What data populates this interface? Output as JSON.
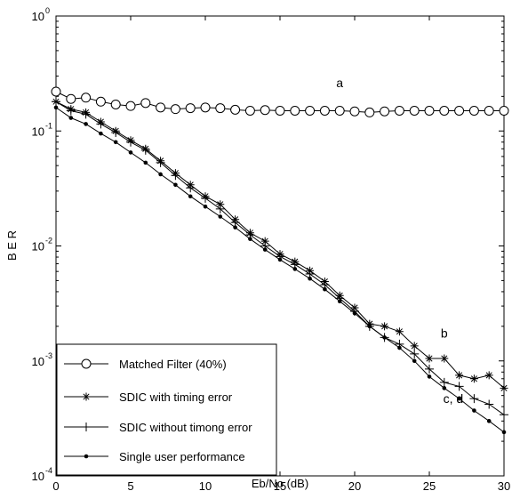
{
  "chart_data": {
    "type": "line",
    "title": "",
    "xlabel": "Eb/No (dB)",
    "ylabel": "B E R",
    "xlim": [
      0,
      30
    ],
    "ylim": [
      0.0001,
      1
    ],
    "yscale": "log",
    "grid": false,
    "legend_position": "bottom-left",
    "x_ticks": [
      "0",
      "5",
      "10",
      "15",
      "20",
      "25",
      "30"
    ],
    "y_ticks": [
      {
        "value": 1,
        "base": "10",
        "exp": "0"
      },
      {
        "value": 0.1,
        "base": "10",
        "exp": "-1"
      },
      {
        "value": 0.01,
        "base": "10",
        "exp": "-2"
      },
      {
        "value": 0.001,
        "base": "10",
        "exp": "-3"
      },
      {
        "value": 0.0001,
        "base": "10",
        "exp": "-4"
      }
    ],
    "x": [
      0,
      1,
      2,
      3,
      4,
      5,
      6,
      7,
      8,
      9,
      10,
      11,
      12,
      13,
      14,
      15,
      16,
      17,
      18,
      19,
      20,
      21,
      22,
      23,
      24,
      25,
      26,
      27,
      28,
      29,
      30
    ],
    "series": [
      {
        "name": "Matched Filter (40%)",
        "marker": "circle",
        "values": [
          0.22,
          0.19,
          0.195,
          0.18,
          0.17,
          0.165,
          0.175,
          0.16,
          0.155,
          0.158,
          0.16,
          0.158,
          0.153,
          0.15,
          0.152,
          0.15,
          0.15,
          0.15,
          0.15,
          0.15,
          0.148,
          0.145,
          0.148,
          0.15,
          0.15,
          0.15,
          0.15,
          0.15,
          0.15,
          0.15,
          0.15
        ]
      },
      {
        "name": "SDIC with timing error",
        "marker": "star",
        "values": [
          0.18,
          0.155,
          0.145,
          0.12,
          0.1,
          0.083,
          0.07,
          0.055,
          0.043,
          0.034,
          0.027,
          0.023,
          0.017,
          0.013,
          0.011,
          0.0085,
          0.0073,
          0.0061,
          0.0049,
          0.0037,
          0.0029,
          0.0021,
          0.002,
          0.0018,
          0.00135,
          0.00105,
          0.00105,
          0.00075,
          0.0007,
          0.00075,
          0.00058
        ]
      },
      {
        "name": "SDIC without timong error",
        "marker": "plus",
        "values": [
          0.18,
          0.15,
          0.14,
          0.115,
          0.097,
          0.08,
          0.068,
          0.053,
          0.041,
          0.032,
          0.026,
          0.021,
          0.016,
          0.0125,
          0.01,
          0.0081,
          0.0069,
          0.0057,
          0.0046,
          0.0035,
          0.0027,
          0.002,
          0.0016,
          0.0014,
          0.00115,
          0.00085,
          0.00065,
          0.0006,
          0.00047,
          0.00042,
          0.00034
        ]
      },
      {
        "name": "Single user performance",
        "marker": "dot",
        "values": [
          0.16,
          0.13,
          0.115,
          0.095,
          0.08,
          0.065,
          0.053,
          0.042,
          0.034,
          0.027,
          0.022,
          0.018,
          0.0145,
          0.0115,
          0.0093,
          0.0076,
          0.0063,
          0.0052,
          0.0042,
          0.0033,
          0.0026,
          0.002,
          0.0016,
          0.0013,
          0.001,
          0.00073,
          0.00058,
          0.00047,
          0.00037,
          0.0003,
          0.00024
        ]
      }
    ],
    "annotations": [
      {
        "text": "a",
        "x": 19,
        "y": 0.24
      },
      {
        "text": "b",
        "x": 26,
        "y": 0.0016
      },
      {
        "text": "c, d",
        "x": 26.6,
        "y": 0.00043
      }
    ]
  }
}
